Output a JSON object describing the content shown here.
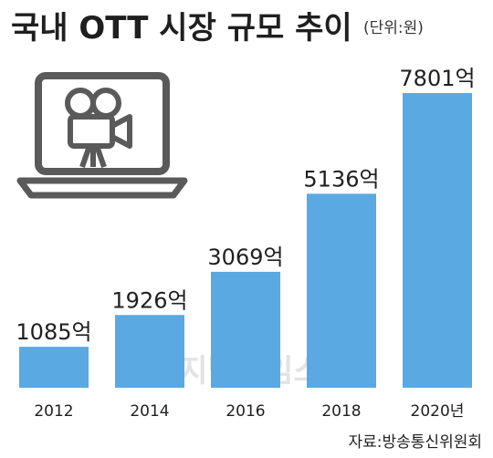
{
  "chart_data": {
    "type": "bar",
    "title": "국내 OTT 시장 규모 추이",
    "unit_note": "(단위:원)",
    "categories": [
      "2012",
      "2014",
      "2016",
      "2018",
      "2020년"
    ],
    "values": [
      1085,
      1926,
      3069,
      5136,
      7801
    ],
    "value_labels": [
      "1085억",
      "1926억",
      "3069억",
      "5136억",
      "7801억"
    ],
    "source": "자료:방송통신위원회",
    "watermark": "디지털타임스",
    "ylim": [
      0,
      8300
    ],
    "grid": false,
    "legend": "none"
  },
  "colors": {
    "bar": "#5aa9e2",
    "text": "#1f1f1f",
    "icon_stroke": "#5a5a5a",
    "icon_fill": "#ffffff",
    "watermark": "#e3e3e3"
  },
  "icons": [
    "laptop-icon",
    "film-camera-icon"
  ]
}
